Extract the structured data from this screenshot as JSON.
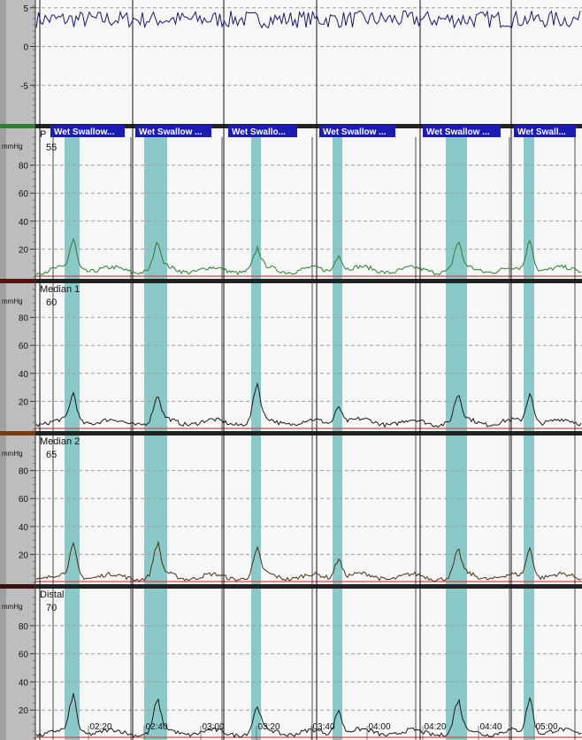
{
  "colors": {
    "page_bg": "#f7f7f7",
    "axis_bg": "#bdbdbd",
    "grid": "#9e9e9e",
    "swallow_band": "#7ec3c3",
    "label_bg": "#1c1cb4",
    "label_text": "#ffffff",
    "baseline": "#c0504d"
  },
  "events": [
    {
      "label": "Wet Swallow..."
    },
    {
      "label": "Wet Swallow ..."
    },
    {
      "label": "Wet Swallo..."
    },
    {
      "label": "Wet Swallow ..."
    },
    {
      "label": "Wet Swallow ..."
    },
    {
      "label": "Wet Swall..."
    }
  ],
  "time_axis": {
    "tick_labels": [
      "02:20",
      "02:40",
      "03:00",
      "03:20",
      "03:40",
      "04:00",
      "04:20",
      "04:40",
      "05:00"
    ]
  },
  "chart_data": [
    {
      "type": "line",
      "title": "",
      "ylabel": "",
      "ylim": [
        -10,
        6
      ],
      "yticks": [
        5,
        0,
        -5
      ],
      "grid": true,
      "series": [
        {
          "color": "#1a1a6e",
          "values_summary": "noisy trace around 3.5"
        }
      ]
    },
    {
      "type": "line",
      "title": "P",
      "ylabel": "mmHg",
      "value_label": "55",
      "ylim": [
        0,
        100
      ],
      "yticks": [
        80,
        60,
        40,
        20
      ],
      "grid": true,
      "band_color": "#2e7d32",
      "series": [
        {
          "color": "#2e7d32",
          "peaks": [
            24,
            22,
            17,
            16,
            22,
            25
          ],
          "baseline": 5
        }
      ]
    },
    {
      "type": "line",
      "title": "Median 1",
      "ylabel": "mmHg",
      "value_label": "60",
      "ylim": [
        0,
        100
      ],
      "yticks": [
        80,
        60,
        40,
        20
      ],
      "grid": true,
      "band_color": "#5a1010",
      "series": [
        {
          "color": "#1a1a1a",
          "peaks": [
            23,
            21,
            29,
            16,
            22,
            24
          ],
          "baseline": 5
        }
      ]
    },
    {
      "type": "line",
      "title": "Median 2",
      "ylabel": "mmHg",
      "value_label": "65",
      "ylim": [
        0,
        100
      ],
      "yticks": [
        80,
        60,
        40,
        20
      ],
      "grid": true,
      "band_color": "#7a3a10",
      "series": [
        {
          "color": "#4a3010",
          "peaks": [
            24,
            25,
            20,
            17,
            20,
            23
          ],
          "baseline": 4
        }
      ]
    },
    {
      "type": "line",
      "title": "Distal",
      "ylabel": "mmHg",
      "value_label": "70",
      "ylim": [
        0,
        100
      ],
      "yticks": [
        80,
        60,
        40,
        20
      ],
      "grid": true,
      "band_color": "#3a1010",
      "series": [
        {
          "color": "#1a1a1a",
          "peaks": [
            28,
            24,
            19,
            20,
            24,
            27
          ],
          "baseline": 4
        }
      ]
    }
  ]
}
